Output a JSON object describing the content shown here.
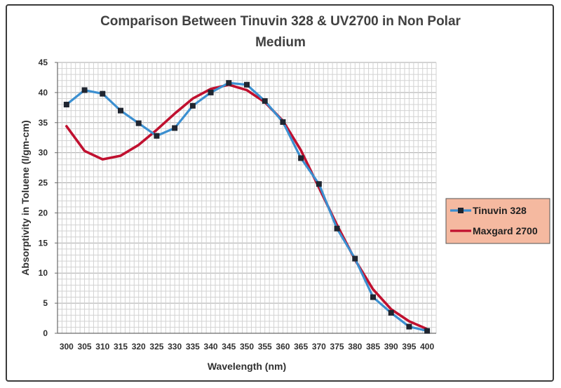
{
  "chart_data": {
    "type": "line",
    "title": "Comparison Between Tinuvin 328 & UV2700 in Non Polar Medium",
    "title_lines": [
      "Comparison Between Tinuvin 328 & UV2700 in Non Polar",
      "Medium"
    ],
    "xlabel": "Wavelength (nm)",
    "ylabel": "Absorptivity in Toluene (l/gm-cm)",
    "x": [
      300,
      305,
      310,
      315,
      320,
      325,
      330,
      335,
      340,
      345,
      350,
      355,
      360,
      365,
      370,
      375,
      380,
      385,
      390,
      395,
      400
    ],
    "x_tick_labels": [
      "300",
      "305",
      "310",
      "315",
      "320",
      "325",
      "330",
      "335",
      "340",
      "345",
      "350",
      "355",
      "360",
      "365",
      "370",
      "375",
      "380",
      "385",
      "390",
      "395",
      "400"
    ],
    "y_ticks": [
      0,
      5,
      10,
      15,
      20,
      25,
      30,
      35,
      40,
      45
    ],
    "ylim": [
      0,
      45
    ],
    "grid": true,
    "legend_position": "right",
    "legend_bg": "#f5b9a0",
    "series": [
      {
        "name": "Tinuvin 328",
        "color": "#3b8fd0",
        "marker": "square",
        "marker_color": "#1f2530",
        "values": [
          38.0,
          40.4,
          39.8,
          37.0,
          34.9,
          32.8,
          34.1,
          37.8,
          40.0,
          41.6,
          41.3,
          38.6,
          35.1,
          29.1,
          24.8,
          17.4,
          12.4,
          6.0,
          3.4,
          1.1,
          0.4
        ]
      },
      {
        "name": "Maxgard 2700",
        "color": "#c0102f",
        "marker": "none",
        "values": [
          34.4,
          30.3,
          28.9,
          29.5,
          31.3,
          33.8,
          36.5,
          39.0,
          40.6,
          41.3,
          40.4,
          38.4,
          35.3,
          30.4,
          24.2,
          18.0,
          12.2,
          7.3,
          4.0,
          2.0,
          0.7
        ]
      }
    ]
  }
}
